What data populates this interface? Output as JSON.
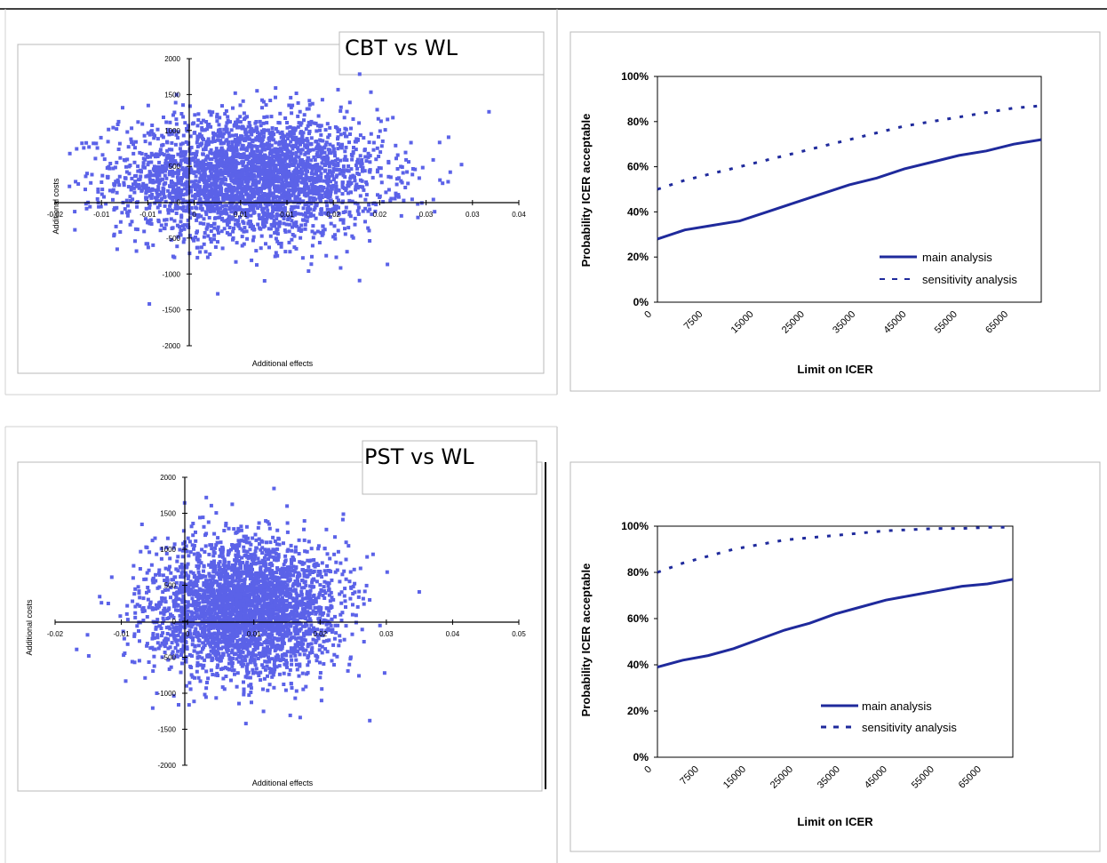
{
  "chart_data": [
    {
      "type": "scatter",
      "title": "CBT vs WL",
      "xlabel": "Additional effects",
      "ylabel": "Additional costs",
      "xlim": [
        -0.02,
        0.04
      ],
      "ylim": [
        -2000,
        2000
      ],
      "x_ticks": [
        "-0.02",
        "-0.01",
        "-0.01",
        "0",
        "0.01",
        "0.01",
        "0.02",
        "0.02",
        "0.03",
        "0.03",
        "0.04"
      ],
      "y_ticks": [
        "2000",
        "1500",
        "1000",
        "500",
        "0",
        "-500",
        "-1000",
        "-1500",
        "-2000"
      ],
      "cloud": {
        "center": [
          0.008,
          350
        ],
        "spread": [
          0.0085,
          420
        ],
        "count": 3200,
        "color": "#5b62e8"
      }
    },
    {
      "type": "line",
      "xlabel": "Limit on ICER",
      "ylabel": "Probability ICER acceptable",
      "x_ticks": [
        "0",
        "7500",
        "15000",
        "25000",
        "35000",
        "45000",
        "55000",
        "65000"
      ],
      "y_ticks": [
        "0%",
        "20%",
        "40%",
        "60%",
        "80%",
        "100%"
      ],
      "xlim": [
        0,
        70000
      ],
      "ylim": [
        0,
        100
      ],
      "legend": "bottom-right",
      "series": [
        {
          "name": "main analysis",
          "style": "solid",
          "color": "#1f2a9c",
          "x": [
            0,
            5000,
            10000,
            15000,
            20000,
            25000,
            30000,
            35000,
            40000,
            45000,
            50000,
            55000,
            60000,
            65000,
            70000
          ],
          "y": [
            28,
            32,
            34,
            36,
            40,
            44,
            48,
            52,
            55,
            59,
            62,
            65,
            67,
            70,
            72
          ]
        },
        {
          "name": "sensitivity analysis",
          "style": "dotted",
          "color": "#1f2a9c",
          "x": [
            0,
            5000,
            10000,
            15000,
            20000,
            25000,
            30000,
            35000,
            40000,
            45000,
            50000,
            55000,
            60000,
            65000,
            70000
          ],
          "y": [
            50,
            54,
            57,
            60,
            63,
            66,
            69,
            72,
            75,
            78,
            80,
            82,
            84,
            86,
            87
          ]
        }
      ]
    },
    {
      "type": "scatter",
      "title": "PST vs WL",
      "xlabel": "Additional effects",
      "ylabel": "Additional costs",
      "xlim": [
        -0.02,
        0.05
      ],
      "ylim": [
        -2000,
        2000
      ],
      "x_ticks": [
        "-0.02",
        "-0.01",
        "0",
        "0.01",
        "0.02",
        "0.03",
        "0.04",
        "0.05"
      ],
      "y_ticks": [
        "2000",
        "1500",
        "1000",
        "500",
        "0",
        "-500",
        "-1000",
        "-1500",
        "-2000"
      ],
      "cloud": {
        "center": [
          0.009,
          200
        ],
        "spread": [
          0.007,
          470
        ],
        "count": 3200,
        "color": "#5b62e8"
      }
    },
    {
      "type": "line",
      "xlabel": "Limit on ICER",
      "ylabel": "Probability ICER acceptable",
      "x_ticks": [
        "0",
        "7500",
        "15000",
        "25000",
        "35000",
        "45000",
        "55000",
        "65000"
      ],
      "y_ticks": [
        "0%",
        "20%",
        "40%",
        "60%",
        "80%",
        "100%"
      ],
      "xlim": [
        0,
        70000
      ],
      "ylim": [
        0,
        100
      ],
      "legend": "bottom-right",
      "series": [
        {
          "name": "main analysis",
          "style": "solid",
          "color": "#1f2a9c",
          "x": [
            0,
            5000,
            10000,
            15000,
            20000,
            25000,
            30000,
            35000,
            40000,
            45000,
            50000,
            55000,
            60000,
            65000,
            70000
          ],
          "y": [
            39,
            42,
            44,
            47,
            51,
            55,
            58,
            62,
            65,
            68,
            70,
            72,
            74,
            75,
            77
          ]
        },
        {
          "name": "sensitivity analysis",
          "style": "dotted",
          "color": "#1f2a9c",
          "x": [
            0,
            5000,
            10000,
            15000,
            20000,
            25000,
            30000,
            35000,
            40000,
            45000,
            50000,
            55000,
            60000,
            65000,
            70000
          ],
          "y": [
            80,
            84,
            87,
            90,
            92,
            94,
            95,
            96,
            97,
            98,
            98.5,
            99,
            99,
            99.5,
            99.5
          ]
        }
      ]
    }
  ]
}
